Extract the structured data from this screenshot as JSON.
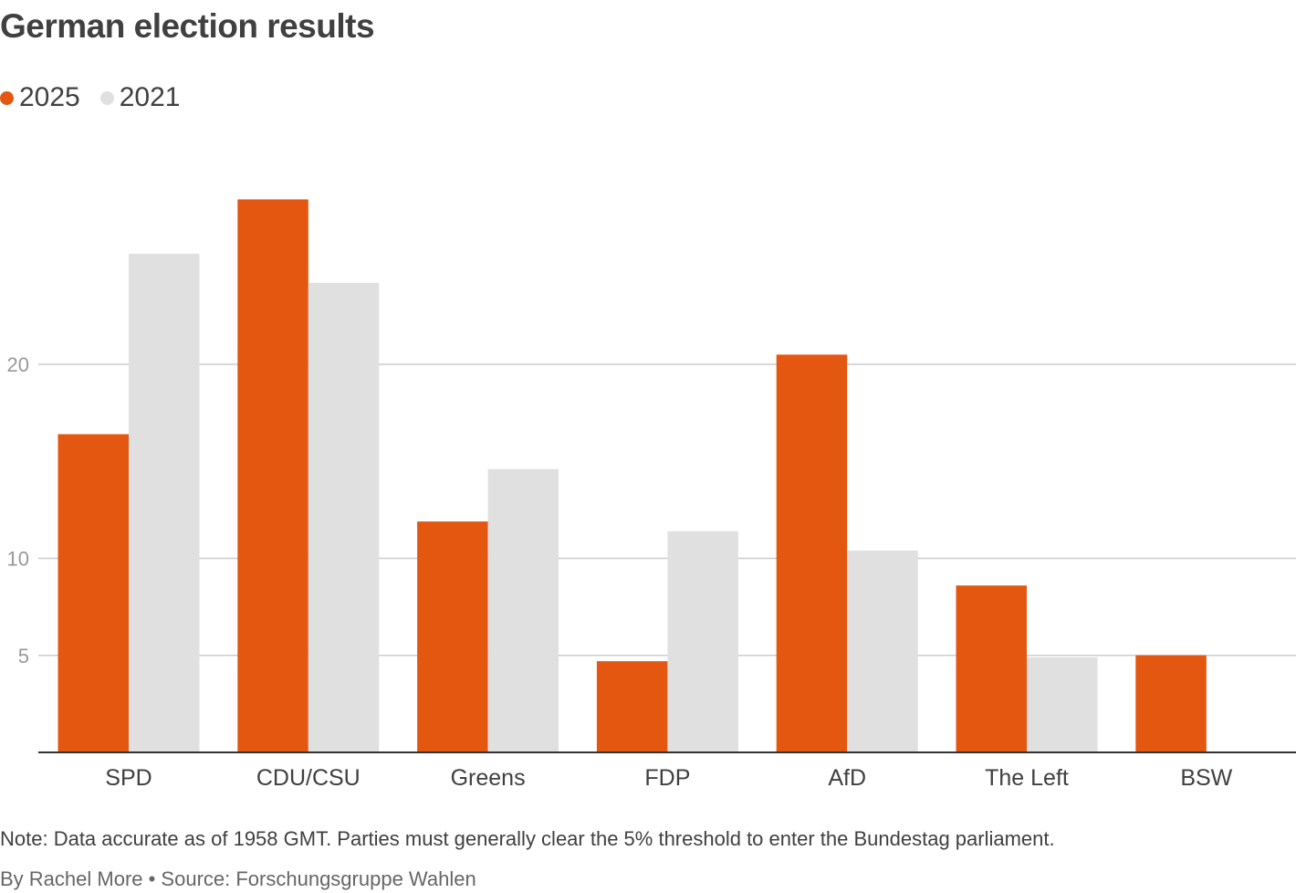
{
  "header": {
    "title": "German election results"
  },
  "legend": {
    "items": [
      {
        "label": "2025",
        "color": "#e35711"
      },
      {
        "label": "2021",
        "color": "#e0e0e0"
      }
    ]
  },
  "chart_data": {
    "type": "bar",
    "title": "German election results",
    "xlabel": "",
    "ylabel": "",
    "categories": [
      "SPD",
      "CDU/CSU",
      "Greens",
      "FDP",
      "AfD",
      "The Left",
      "BSW"
    ],
    "series": [
      {
        "name": "2025",
        "color": "#e35711",
        "values": [
          16.4,
          28.5,
          11.9,
          4.7,
          20.5,
          8.6,
          5.0
        ]
      },
      {
        "name": "2021",
        "color": "#e0e0e0",
        "values": [
          25.7,
          24.2,
          14.6,
          11.4,
          10.4,
          4.9,
          null
        ]
      }
    ],
    "y_ticks": [
      5,
      10,
      20
    ],
    "ylim": [
      0,
      30
    ],
    "grid": true,
    "legend_position": "top-left"
  },
  "footer": {
    "note": "Note: Data accurate as of 1958 GMT. Parties must generally clear the 5% threshold to enter the Bundestag parliament.",
    "credit": "By Rachel More • Source: Forschungsgruppe Wahlen"
  }
}
